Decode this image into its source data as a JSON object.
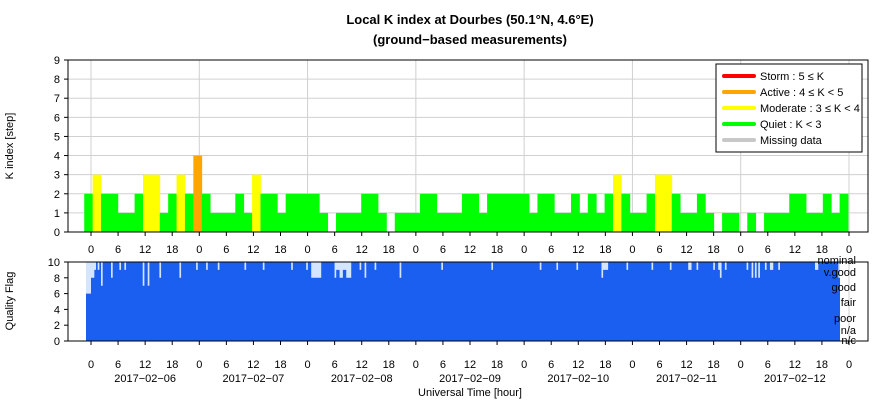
{
  "title_line1": "Local K index at Dourbes (50.1°N, 4.6°E)",
  "title_line2": "(ground−based measurements)",
  "colors": {
    "storm": "#ff0000",
    "active": "#ffa500",
    "moderate": "#ffff00",
    "quiet": "#00ff00",
    "missing": "#c8c8c8",
    "quality": "#1a5ff0",
    "quality_light": "#d4e5ff"
  },
  "chart_data": [
    {
      "type": "bar",
      "name": "K index",
      "ylabel": "K index [step]",
      "ylim": [
        0,
        9
      ],
      "yticks": [
        0,
        1,
        2,
        3,
        4,
        5,
        6,
        7,
        8,
        9
      ],
      "grid": true,
      "hour_labels": [
        "0",
        "6",
        "12",
        "18",
        "0",
        "6",
        "12",
        "18",
        "0",
        "6",
        "12",
        "18",
        "0",
        "6",
        "12",
        "18",
        "0",
        "6",
        "12",
        "18",
        "0",
        "6",
        "12",
        "18",
        "0",
        "6",
        "12",
        "18",
        "0"
      ],
      "bar_width_hours": 3,
      "k_values": [
        2,
        3,
        2,
        2,
        1,
        1,
        2,
        3,
        3,
        1,
        2,
        3,
        2,
        4,
        2,
        1,
        1,
        1,
        2,
        1,
        3,
        2,
        2,
        1,
        2,
        2,
        2,
        2,
        1,
        0,
        1,
        1,
        1,
        2,
        2,
        1,
        0,
        1,
        1,
        1,
        2,
        2,
        1,
        1,
        1,
        2,
        2,
        1,
        2,
        2,
        2,
        2,
        2,
        1,
        2,
        2,
        1,
        1,
        2,
        1,
        2,
        1,
        2,
        3,
        2,
        1,
        1,
        2,
        3,
        3,
        2,
        1,
        1,
        2,
        1,
        0,
        1,
        1,
        0,
        1,
        0,
        1,
        1,
        1,
        2,
        2,
        1,
        1,
        2,
        1,
        2
      ],
      "legend": {
        "position": "top-right",
        "items": [
          {
            "label": "Storm : 5 ≤ K",
            "color": "#ff0000"
          },
          {
            "label": "Active : 4 ≤ K < 5",
            "color": "#ffa500"
          },
          {
            "label": "Moderate : 3 ≤ K < 4",
            "color": "#ffff00"
          },
          {
            "label": "Quiet : K < 3",
            "color": "#00ff00"
          },
          {
            "label": "Missing data",
            "color": "#c8c8c8"
          }
        ]
      }
    },
    {
      "type": "area",
      "name": "Quality Flag",
      "ylabel": "Quality Flag",
      "xlabel": "Universal Time [hour]",
      "ylim": [
        0,
        10
      ],
      "yticks": [
        0,
        2,
        4,
        6,
        8,
        10
      ],
      "quality_labels": [
        "nominal",
        "v.good",
        "good",
        "fair",
        "poor",
        "n/a",
        "n/c"
      ],
      "hour_labels": [
        "0",
        "6",
        "12",
        "18",
        "0",
        "6",
        "12",
        "18",
        "0",
        "6",
        "12",
        "18",
        "0",
        "6",
        "12",
        "18",
        "0",
        "6",
        "12",
        "18",
        "0",
        "6",
        "12",
        "18",
        "0",
        "6",
        "12",
        "18",
        "0"
      ],
      "date_labels": [
        "2017−02−06",
        "2017−02−07",
        "2017−02−08",
        "2017−02−09",
        "2017−02−10",
        "2017−02−11",
        "2017−02−12"
      ],
      "quality_values": [
        6,
        6,
        6,
        8,
        8,
        9,
        10,
        9,
        10,
        7,
        10,
        10,
        10,
        10,
        10,
        8,
        10,
        10,
        10,
        10,
        9,
        10,
        10,
        9,
        10,
        10,
        10,
        10,
        10,
        10,
        10,
        10,
        10,
        10,
        7,
        10,
        10,
        7,
        10,
        10,
        10,
        10,
        10,
        10,
        8,
        10,
        10,
        10,
        10,
        10,
        10,
        10,
        10,
        10,
        10,
        10,
        8,
        10,
        10,
        10,
        10,
        10,
        10,
        10,
        10,
        10,
        9,
        10,
        10,
        10,
        10,
        10,
        9,
        10,
        10,
        10,
        10,
        10,
        10,
        9,
        10,
        10,
        10,
        10,
        10,
        10,
        10,
        10,
        10,
        10,
        10,
        10,
        10,
        10,
        10,
        9,
        10,
        10,
        10,
        10,
        10,
        10,
        10,
        10,
        10,
        10,
        9,
        10,
        10,
        10,
        10,
        10,
        10,
        10,
        10,
        10,
        10,
        10,
        10,
        10,
        10,
        10,
        10,
        9,
        10,
        10,
        10,
        10,
        10,
        10,
        10,
        10,
        9,
        10,
        10,
        8,
        8,
        8,
        8,
        8,
        8,
        10,
        10,
        10,
        10,
        10,
        10,
        10,
        10,
        8,
        9,
        9,
        8,
        8,
        9,
        9,
        8,
        8,
        8,
        10,
        10,
        10,
        10,
        10,
        9,
        10,
        10,
        8,
        10,
        10,
        10,
        10,
        10,
        9,
        10,
        10,
        10,
        10,
        10,
        10,
        10,
        10,
        10,
        10,
        10,
        10,
        10,
        10,
        8,
        10,
        10,
        10,
        10,
        10,
        10,
        10,
        10,
        10,
        10,
        10,
        10,
        10,
        10,
        10,
        10,
        10,
        10,
        10,
        10,
        10,
        10,
        10,
        10,
        9,
        10,
        10,
        10,
        10,
        10,
        10,
        10,
        10,
        10,
        10,
        10,
        10,
        10,
        10,
        10,
        10,
        10,
        10,
        10,
        10,
        10,
        10,
        10,
        10,
        10,
        10,
        10,
        10,
        10,
        9,
        10,
        10,
        10,
        10,
        10,
        10,
        10,
        10,
        10,
        10,
        10,
        10,
        10,
        10,
        10,
        10,
        10,
        10,
        10,
        10,
        10,
        10,
        10,
        10,
        10,
        10,
        10,
        10,
        9,
        10,
        10,
        10,
        10,
        10,
        10,
        10,
        10,
        10,
        9,
        10,
        10,
        10,
        10,
        10,
        10,
        10,
        10,
        10,
        10,
        10,
        9,
        10,
        10,
        10,
        10,
        10,
        10,
        10,
        10,
        10,
        10,
        10,
        10,
        10,
        10,
        8,
        9,
        9,
        9,
        10,
        10,
        10,
        10,
        10,
        10,
        10,
        10,
        10,
        10,
        10,
        9,
        10,
        10,
        10,
        10,
        10,
        10,
        10,
        10,
        10,
        10,
        10,
        10,
        10,
        10,
        9,
        10,
        10,
        10,
        10,
        10,
        10,
        10,
        10,
        10,
        10,
        9,
        10,
        10,
        10,
        10,
        10,
        10,
        10,
        10,
        10,
        10,
        9,
        9,
        10,
        10,
        10,
        9,
        10,
        10,
        10,
        10,
        10,
        10,
        10,
        10,
        10,
        9,
        10,
        10,
        9,
        8,
        10,
        10,
        9,
        10,
        10,
        10,
        10,
        10,
        10,
        10,
        10,
        10,
        10,
        10,
        10,
        9,
        10,
        10,
        8,
        10,
        8,
        10,
        8,
        10,
        10,
        10,
        9,
        10,
        10,
        9,
        9,
        10,
        10,
        10,
        9,
        10,
        10,
        10,
        10,
        10,
        10,
        10,
        10,
        10,
        10,
        10,
        10,
        10,
        10,
        10,
        10,
        10,
        10,
        10,
        10,
        10,
        9,
        9,
        10,
        10,
        10,
        10,
        10,
        10,
        10,
        10,
        10,
        10,
        10,
        10,
        8
      ]
    }
  ]
}
